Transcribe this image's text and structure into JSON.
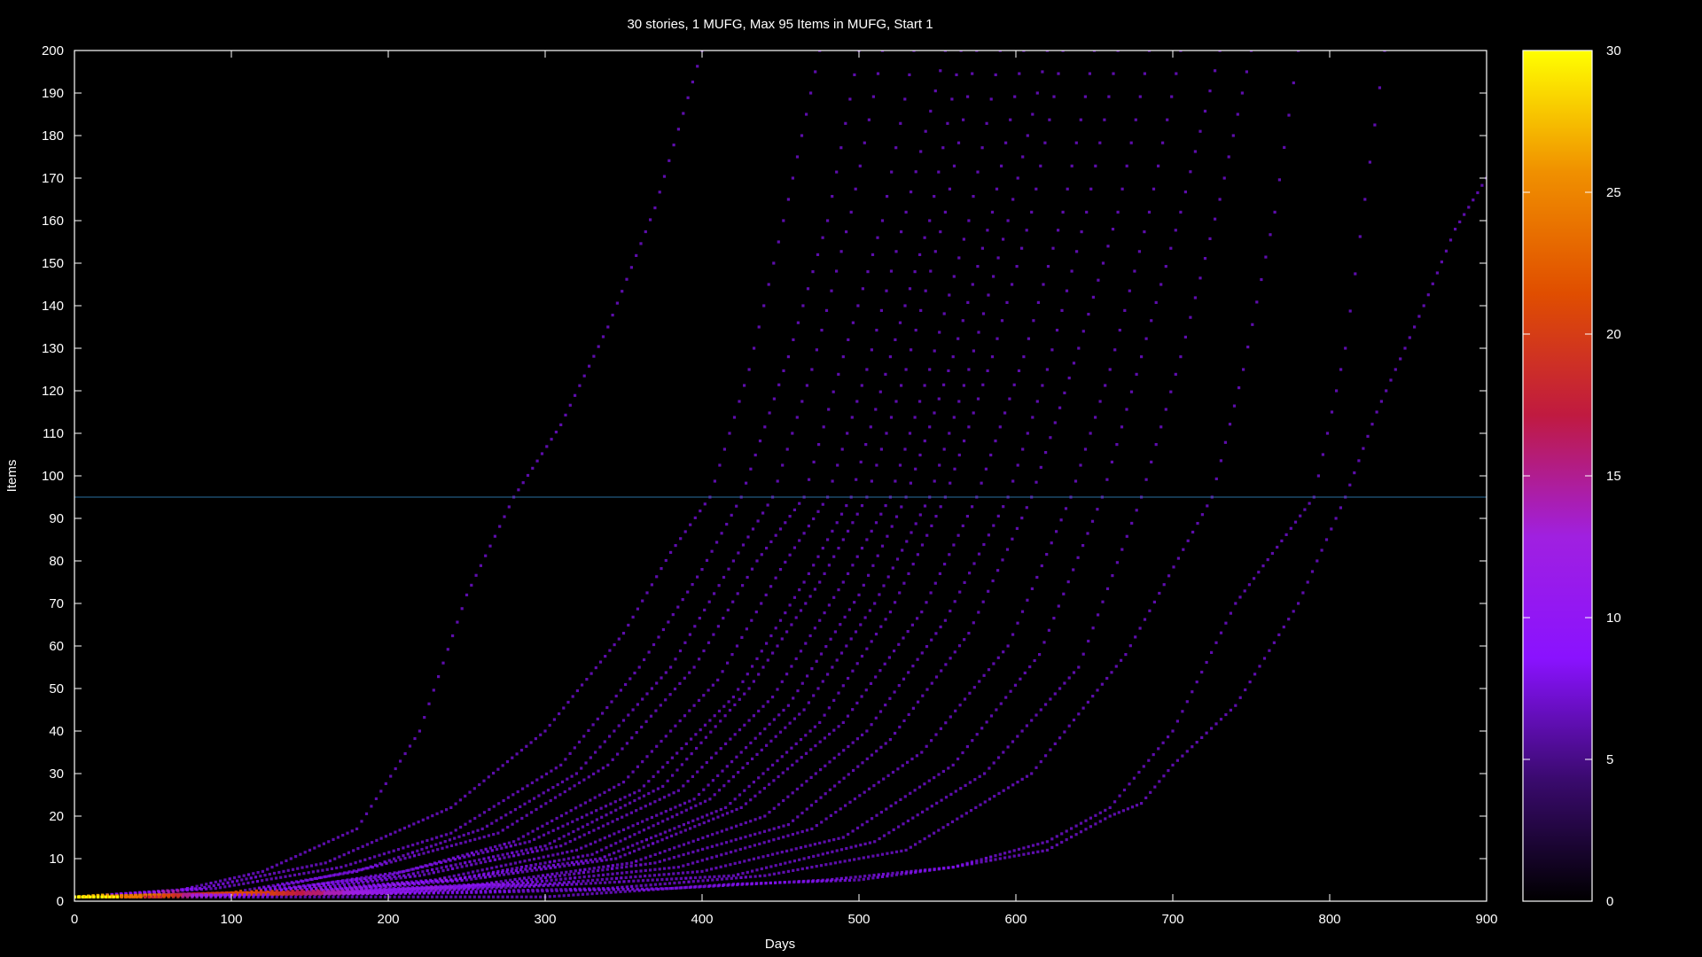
{
  "chart_data": {
    "type": "scatter",
    "title": "30 stories, 1 MUFG, Max 95 Items in MUFG, Start 1",
    "xlabel": "Days",
    "ylabel": "Items",
    "xlim": [
      0,
      900
    ],
    "ylim": [
      0,
      200
    ],
    "xticks": [
      0,
      100,
      200,
      300,
      400,
      500,
      600,
      700,
      800,
      900
    ],
    "yticks": [
      0,
      10,
      20,
      30,
      40,
      50,
      60,
      70,
      80,
      90,
      100,
      110,
      120,
      130,
      140,
      150,
      160,
      170,
      180,
      190,
      200
    ],
    "grid": false,
    "reference_line": {
      "y": 95,
      "color": "#2a6fa0"
    },
    "colorbar": {
      "min": 0,
      "max": 30,
      "ticks": [
        0,
        5,
        10,
        15,
        20,
        25,
        30
      ],
      "palette": [
        "#000000",
        "#3a0a6e",
        "#8a12ff",
        "#a020e0",
        "#c01a40",
        "#e04e00",
        "#f09000",
        "#ffff00"
      ]
    },
    "series": [
      {
        "values": [
          [
            0,
            1
          ],
          [
            60,
            2
          ],
          [
            120,
            7
          ],
          [
            180,
            17
          ],
          [
            220,
            40
          ],
          [
            250,
            72
          ],
          [
            280,
            95
          ],
          [
            310,
            112
          ],
          [
            340,
            135
          ],
          [
            370,
            163
          ],
          [
            400,
            200
          ]
        ]
      },
      {
        "values": [
          [
            0,
            1
          ],
          [
            80,
            3
          ],
          [
            160,
            9
          ],
          [
            240,
            22
          ],
          [
            300,
            40
          ],
          [
            350,
            63
          ],
          [
            380,
            82
          ],
          [
            405,
            95
          ],
          [
            430,
            125
          ],
          [
            455,
            165
          ],
          [
            475,
            200
          ]
        ]
      },
      {
        "values": [
          [
            0,
            1
          ],
          [
            90,
            3
          ],
          [
            170,
            8
          ],
          [
            240,
            16
          ],
          [
            310,
            32
          ],
          [
            360,
            55
          ],
          [
            400,
            78
          ],
          [
            425,
            95
          ],
          [
            455,
            128
          ],
          [
            480,
            160
          ],
          [
            500,
            200
          ]
        ]
      },
      {
        "values": [
          [
            0,
            1
          ],
          [
            100,
            2
          ],
          [
            180,
            7
          ],
          [
            260,
            17
          ],
          [
            320,
            30
          ],
          [
            380,
            55
          ],
          [
            420,
            80
          ],
          [
            445,
            95
          ],
          [
            470,
            125
          ],
          [
            495,
            162
          ],
          [
            515,
            200
          ]
        ]
      },
      {
        "values": [
          [
            0,
            1
          ],
          [
            110,
            2
          ],
          [
            190,
            8
          ],
          [
            270,
            16
          ],
          [
            340,
            32
          ],
          [
            395,
            55
          ],
          [
            435,
            80
          ],
          [
            465,
            95
          ],
          [
            490,
            128
          ],
          [
            515,
            160
          ],
          [
            535,
            200
          ]
        ]
      },
      {
        "values": [
          [
            0,
            1
          ],
          [
            110,
            2
          ],
          [
            200,
            6
          ],
          [
            280,
            14
          ],
          [
            350,
            28
          ],
          [
            410,
            52
          ],
          [
            450,
            78
          ],
          [
            480,
            95
          ],
          [
            505,
            125
          ],
          [
            530,
            162
          ],
          [
            555,
            200
          ]
        ]
      },
      {
        "values": [
          [
            0,
            1
          ],
          [
            120,
            2
          ],
          [
            210,
            7
          ],
          [
            290,
            14
          ],
          [
            360,
            26
          ],
          [
            420,
            48
          ],
          [
            465,
            75
          ],
          [
            495,
            95
          ],
          [
            520,
            128
          ],
          [
            545,
            160
          ],
          [
            565,
            200
          ]
        ]
      },
      {
        "values": [
          [
            0,
            1
          ],
          [
            120,
            2
          ],
          [
            210,
            6
          ],
          [
            300,
            13
          ],
          [
            375,
            27
          ],
          [
            430,
            50
          ],
          [
            475,
            75
          ],
          [
            505,
            95
          ],
          [
            530,
            125
          ],
          [
            555,
            162
          ],
          [
            575,
            200
          ]
        ]
      },
      {
        "values": [
          [
            0,
            1
          ],
          [
            130,
            2
          ],
          [
            220,
            6
          ],
          [
            310,
            13
          ],
          [
            385,
            26
          ],
          [
            445,
            48
          ],
          [
            490,
            75
          ],
          [
            520,
            95
          ],
          [
            545,
            125
          ],
          [
            570,
            160
          ],
          [
            590,
            200
          ]
        ]
      },
      {
        "values": [
          [
            0,
            1
          ],
          [
            130,
            2
          ],
          [
            230,
            5
          ],
          [
            320,
            12
          ],
          [
            395,
            24
          ],
          [
            455,
            46
          ],
          [
            500,
            72
          ],
          [
            530,
            95
          ],
          [
            560,
            128
          ],
          [
            585,
            162
          ],
          [
            605,
            200
          ]
        ]
      },
      {
        "values": [
          [
            0,
            1
          ],
          [
            140,
            2
          ],
          [
            240,
            5
          ],
          [
            330,
            11
          ],
          [
            405,
            24
          ],
          [
            465,
            45
          ],
          [
            510,
            70
          ],
          [
            545,
            95
          ],
          [
            570,
            125
          ],
          [
            595,
            160
          ],
          [
            620,
            200
          ]
        ]
      },
      {
        "values": [
          [
            0,
            1
          ],
          [
            140,
            2
          ],
          [
            240,
            5
          ],
          [
            335,
            10
          ],
          [
            415,
            22
          ],
          [
            475,
            42
          ],
          [
            520,
            68
          ],
          [
            555,
            95
          ],
          [
            585,
            128
          ],
          [
            610,
            162
          ],
          [
            630,
            200
          ]
        ]
      },
      {
        "values": [
          [
            0,
            1
          ],
          [
            150,
            2
          ],
          [
            250,
            5
          ],
          [
            345,
            10
          ],
          [
            425,
            22
          ],
          [
            490,
            42
          ],
          [
            540,
            68
          ],
          [
            575,
            95
          ],
          [
            605,
            128
          ],
          [
            630,
            162
          ],
          [
            650,
            200
          ]
        ]
      },
      {
        "values": [
          [
            0,
            1
          ],
          [
            150,
            2
          ],
          [
            260,
            4
          ],
          [
            355,
            9
          ],
          [
            440,
            20
          ],
          [
            505,
            40
          ],
          [
            555,
            66
          ],
          [
            595,
            95
          ],
          [
            620,
            125
          ],
          [
            645,
            162
          ],
          [
            665,
            200
          ]
        ]
      },
      {
        "values": [
          [
            0,
            1
          ],
          [
            160,
            2
          ],
          [
            270,
            4
          ],
          [
            370,
            9
          ],
          [
            455,
            18
          ],
          [
            520,
            38
          ],
          [
            570,
            63
          ],
          [
            610,
            95
          ],
          [
            640,
            130
          ],
          [
            665,
            162
          ],
          [
            685,
            200
          ]
        ]
      },
      {
        "values": [
          [
            0,
            1
          ],
          [
            170,
            2
          ],
          [
            280,
            4
          ],
          [
            385,
            8
          ],
          [
            470,
            17
          ],
          [
            540,
            35
          ],
          [
            595,
            60
          ],
          [
            635,
            95
          ],
          [
            660,
            125
          ],
          [
            685,
            162
          ],
          [
            705,
            200
          ]
        ]
      },
      {
        "values": [
          [
            0,
            1
          ],
          [
            180,
            2
          ],
          [
            300,
            4
          ],
          [
            400,
            7
          ],
          [
            490,
            15
          ],
          [
            560,
            32
          ],
          [
            615,
            58
          ],
          [
            655,
            95
          ],
          [
            680,
            128
          ],
          [
            705,
            162
          ],
          [
            730,
            200
          ]
        ]
      },
      {
        "values": [
          [
            0,
            1
          ],
          [
            200,
            2
          ],
          [
            320,
            4
          ],
          [
            420,
            6
          ],
          [
            510,
            14
          ],
          [
            580,
            30
          ],
          [
            640,
            55
          ],
          [
            680,
            95
          ],
          [
            705,
            128
          ],
          [
            730,
            165
          ],
          [
            750,
            200
          ]
        ]
      },
      {
        "values": [
          [
            0,
            1
          ],
          [
            220,
            2
          ],
          [
            340,
            3
          ],
          [
            440,
            6
          ],
          [
            530,
            12
          ],
          [
            610,
            30
          ],
          [
            670,
            58
          ],
          [
            725,
            95
          ],
          [
            745,
            125
          ],
          [
            765,
            162
          ],
          [
            780,
            200
          ]
        ]
      },
      {
        "values": [
          [
            0,
            1
          ],
          [
            250,
            2
          ],
          [
            380,
            3
          ],
          [
            480,
            5
          ],
          [
            560,
            8
          ],
          [
            620,
            14
          ],
          [
            660,
            22
          ],
          [
            700,
            40
          ],
          [
            740,
            70
          ],
          [
            790,
            95
          ],
          [
            810,
            130
          ],
          [
            835,
            200
          ]
        ]
      },
      {
        "values": [
          [
            0,
            1
          ],
          [
            300,
            1
          ],
          [
            420,
            4
          ],
          [
            500,
            5
          ],
          [
            560,
            8
          ],
          [
            620,
            12
          ],
          [
            660,
            20
          ],
          [
            680,
            23
          ],
          [
            700,
            32
          ],
          [
            740,
            46
          ],
          [
            780,
            70
          ],
          [
            810,
            95
          ],
          [
            830,
            115
          ],
          [
            860,
            140
          ],
          [
            880,
            158
          ],
          [
            900,
            170
          ]
        ]
      }
    ]
  }
}
